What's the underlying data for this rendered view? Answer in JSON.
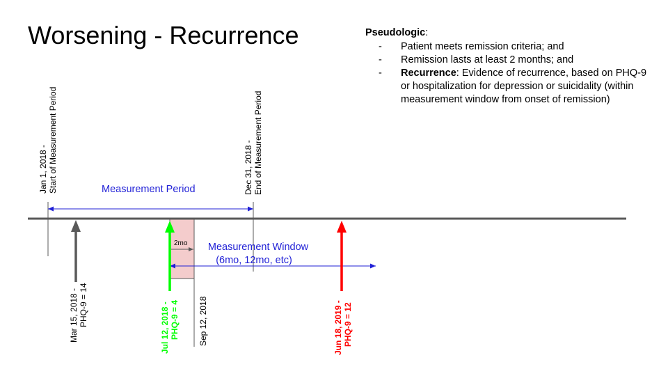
{
  "slide": {
    "title": "Worsening - Recurrence"
  },
  "pseudologic": {
    "heading": "Pseudologic",
    "heading_suffix": ":",
    "items": [
      {
        "bold": "",
        "text": "Patient meets remission criteria; and"
      },
      {
        "bold": "",
        "text": "Remission lasts at least 2 months; and"
      },
      {
        "bold": "Recurrence",
        "text": ": Evidence of recurrence, based on PHQ-9 or hospitalization for depression or suicidality (within measurement window from onset of remission)"
      }
    ]
  },
  "timeline": {
    "start_label_line1": "Jan 1, 2018 -",
    "start_label_line2": "Start of Measurement  Period",
    "end_label_line1": "Dec 31, 2018 -",
    "end_label_line2": "End of Measurement Period",
    "period_label": "Measurement Period",
    "window_label_line1": "Measurement Window",
    "window_label_line2": "(6mo, 12mo, etc)",
    "remission_duration_label": "2mo",
    "remission_end_label": "Sep 12, 2018",
    "colors": {
      "axis": "#595959",
      "period": "#1f1fd6",
      "baseline_arrow": "#595959",
      "remission_arrow": "#00ff00",
      "recurrence_arrow": "#ff0000",
      "remission_box": "#f4cccc"
    },
    "events": [
      {
        "name": "baseline",
        "label_line1": "Mar 15, 2018 -",
        "label_line2": "PHQ-9 = 14",
        "bold": false
      },
      {
        "name": "remission",
        "label_line1": "Jul 12, 2018 -",
        "label_line2": "PHQ-9 = 4",
        "bold": true
      },
      {
        "name": "recurrence",
        "label_line1": "Jun 18, 2019 -",
        "label_line2": "PHQ-9 = 12",
        "bold": true
      }
    ]
  }
}
